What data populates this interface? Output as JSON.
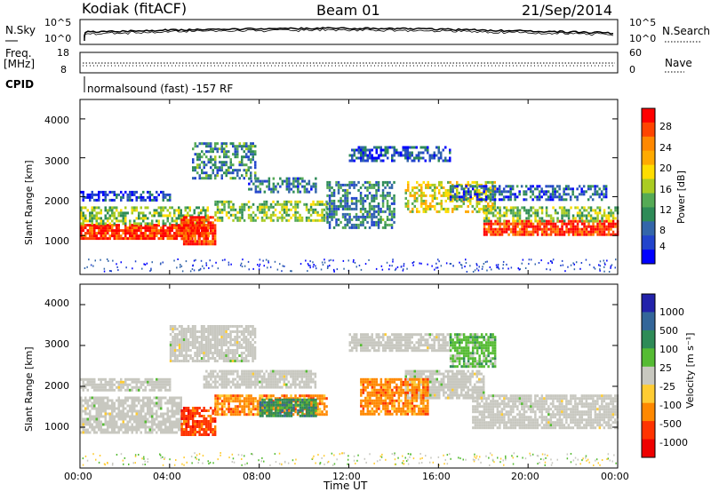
{
  "header": {
    "radar": "Kodiak (fitACF)",
    "beam": "Beam 01",
    "date": "21/Sep/2014"
  },
  "top_panel": {
    "left_label": "N.Sky",
    "left_ticks": [
      "10^5",
      "10^0"
    ],
    "right_ticks": [
      "10^5",
      "10^0"
    ],
    "right_label": "N.Search"
  },
  "freq_panel": {
    "left_label_1": "Freq.",
    "left_label_2": "[MHz]",
    "left_ticks": [
      "18",
      "8"
    ],
    "right_ticks": [
      "60",
      "0"
    ],
    "right_label": "Nave"
  },
  "cpid": {
    "label": "CPID",
    "text": "normalsound (fast) -157 RF"
  },
  "chart_data": [
    {
      "type": "heatmap",
      "name": "power",
      "ylabel": "Slant Range [km]",
      "yticks": [
        "4000",
        "3000",
        "2000",
        "1000"
      ],
      "ylim": [
        0,
        4500
      ],
      "xlim_hours": [
        0,
        24
      ],
      "colorbar": {
        "label": "Power [dB]",
        "ticks": [
          "28",
          "24",
          "20",
          "16",
          "12",
          "8",
          "4"
        ],
        "colors": [
          "#ff0000",
          "#ff4400",
          "#ff8800",
          "#ffaa00",
          "#ffdd00",
          "#aacc22",
          "#55aa55",
          "#2e8b57",
          "#3366aa",
          "#2244cc",
          "#0000ff"
        ]
      },
      "bands": [
        {
          "t0": 0.0,
          "t1": 5.7,
          "r0": 900,
          "r1": 1300,
          "level": 0.92
        },
        {
          "t0": 0.0,
          "t1": 5.7,
          "r0": 1300,
          "r1": 1750,
          "level": 0.45
        },
        {
          "t0": 4.5,
          "t1": 6.0,
          "r0": 800,
          "r1": 1500,
          "level": 0.9
        },
        {
          "t0": 6.0,
          "t1": 11.0,
          "r0": 1400,
          "r1": 1900,
          "level": 0.45
        },
        {
          "t0": 14.5,
          "t1": 18.5,
          "r0": 1600,
          "r1": 2400,
          "level": 0.55
        },
        {
          "t0": 18.0,
          "t1": 24.0,
          "r0": 1000,
          "r1": 1400,
          "level": 0.9
        },
        {
          "t0": 18.0,
          "t1": 24.0,
          "r0": 1400,
          "r1": 1750,
          "level": 0.45
        },
        {
          "t0": 0.0,
          "t1": 4.0,
          "r0": 1900,
          "r1": 2150,
          "level": 0.15
        },
        {
          "t0": 5.0,
          "t1": 7.8,
          "r0": 2500,
          "r1": 3400,
          "level": 0.3
        },
        {
          "t0": 7.5,
          "t1": 10.5,
          "r0": 2100,
          "r1": 2500,
          "level": 0.25
        },
        {
          "t0": 12.0,
          "t1": 16.5,
          "r0": 2900,
          "r1": 3300,
          "level": 0.18
        },
        {
          "t0": 16.5,
          "t1": 23.5,
          "r0": 1950,
          "r1": 2300,
          "level": 0.2
        },
        {
          "t0": 11.0,
          "t1": 14.0,
          "r0": 1200,
          "r1": 2400,
          "level": 0.3
        }
      ]
    },
    {
      "type": "heatmap",
      "name": "velocity",
      "ylabel": "Slant Range [km]",
      "yticks": [
        "4000",
        "3000",
        "2000",
        "1000"
      ],
      "ylim": [
        0,
        4500
      ],
      "xlim_hours": [
        0,
        24
      ],
      "xticks": [
        "00:00",
        "04:00",
        "08:00",
        "12:00",
        "16:00",
        "20:00",
        "00:00"
      ],
      "xlabel": "Time UT",
      "colorbar": {
        "label": "Velocity [m s⁻¹]",
        "ticks": [
          "1000",
          "500",
          "100",
          "25",
          "-25",
          "-100",
          "-500",
          "-1000"
        ],
        "colors": [
          "#2222aa",
          "#336699",
          "#2e8b57",
          "#55bb33",
          "#c8c8c0",
          "#ffcc33",
          "#ff8800",
          "#ff3300",
          "#ee0000"
        ]
      },
      "bands": [
        {
          "t0": 0.0,
          "t1": 4.5,
          "r0": 900,
          "r1": 1750,
          "vel": 0
        },
        {
          "t0": 17.5,
          "t1": 24.0,
          "r0": 1000,
          "r1": 1800,
          "vel": 0
        },
        {
          "t0": 14.5,
          "t1": 18.0,
          "r0": 1700,
          "r1": 2400,
          "vel": 0
        },
        {
          "t0": 4.5,
          "t1": 6.0,
          "r0": 800,
          "r1": 1500,
          "vel": -3
        },
        {
          "t0": 6.0,
          "t1": 11.0,
          "r0": 1300,
          "r1": 1800,
          "vel": -2
        },
        {
          "t0": 8.0,
          "t1": 10.5,
          "r0": 1300,
          "r1": 1700,
          "vel": 2
        },
        {
          "t0": 5.5,
          "t1": 10.5,
          "r0": 2000,
          "r1": 2400,
          "vel": 0
        },
        {
          "t0": 4.0,
          "t1": 7.8,
          "r0": 2600,
          "r1": 3500,
          "vel": 0
        },
        {
          "t0": 12.0,
          "t1": 16.5,
          "r0": 2900,
          "r1": 3300,
          "vel": 0
        },
        {
          "t0": 12.5,
          "t1": 15.5,
          "r0": 1300,
          "r1": 2200,
          "vel": -2
        },
        {
          "t0": 0.0,
          "t1": 4.0,
          "r0": 1900,
          "r1": 2200,
          "vel": 0
        },
        {
          "t0": 16.5,
          "t1": 18.5,
          "r0": 2500,
          "r1": 3300,
          "vel": 1
        }
      ]
    }
  ]
}
